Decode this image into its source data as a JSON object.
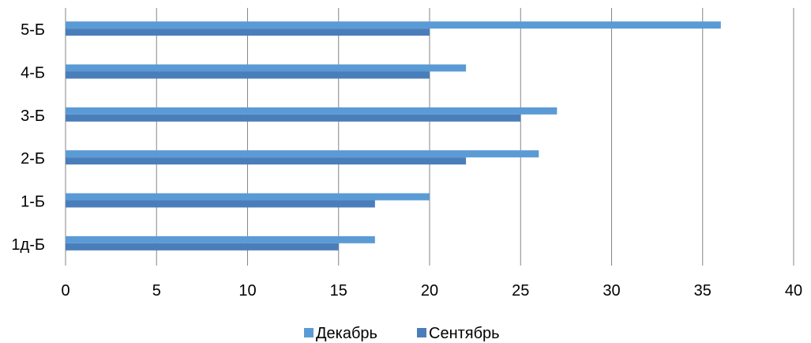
{
  "chart_data": {
    "type": "bar",
    "orientation": "horizontal",
    "categories": [
      "1д-Б",
      "1-Б",
      "2-Б",
      "3-Б",
      "4-Б",
      "5-Б"
    ],
    "series": [
      {
        "name": "Декабрь",
        "color": "#5B9BD5",
        "values": [
          17,
          20,
          26,
          27,
          22,
          36
        ]
      },
      {
        "name": "Сентябрь",
        "color": "#4A7EBB",
        "values": [
          15,
          17,
          22,
          25,
          20,
          20
        ]
      }
    ],
    "xlim": [
      0,
      40
    ],
    "xticks": [
      "0",
      "5",
      "10",
      "15",
      "20",
      "25",
      "30",
      "35",
      "40"
    ],
    "grid": true,
    "legend_position": "bottom",
    "title": "",
    "xlabel": "",
    "ylabel": ""
  }
}
